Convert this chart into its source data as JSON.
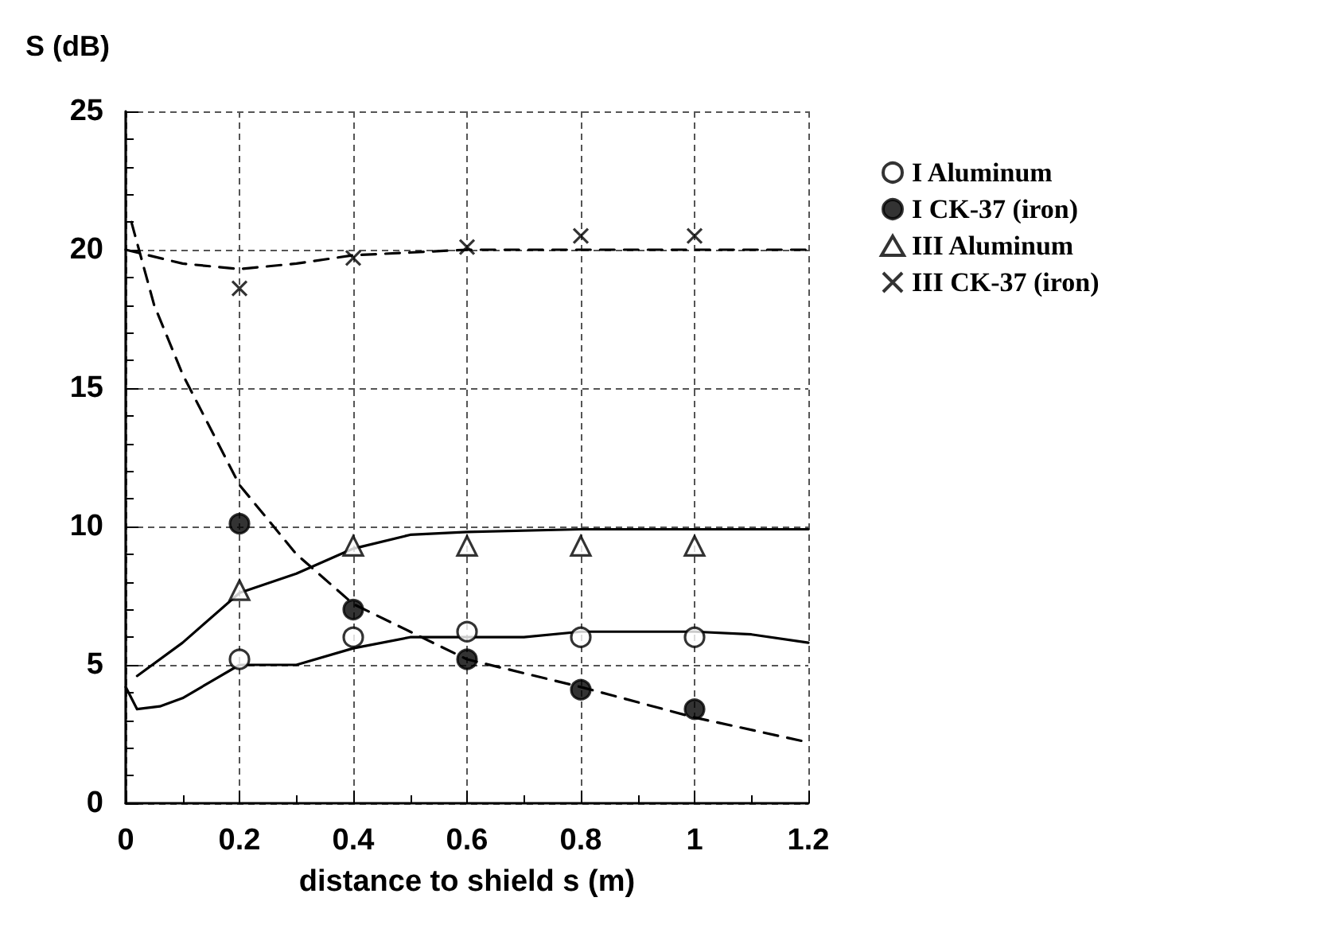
{
  "chart_data": {
    "type": "line",
    "xlabel": "distance to shield s (m)",
    "ylabel": "S (dB)",
    "xlim": [
      0,
      1.2
    ],
    "xticks": [
      0,
      0.2,
      0.4,
      0.6,
      0.8,
      1,
      1.2
    ],
    "ylim": [
      0,
      25
    ],
    "yticks": [
      0,
      5,
      10,
      15,
      20,
      25
    ],
    "grid": true,
    "legend": "right",
    "series": [
      {
        "color": "#000000",
        "line_style": "solid",
        "marker": "none",
        "x": [
          0,
          0.02,
          0.06,
          0.1,
          0.15,
          0.2,
          0.3,
          0.4,
          0.5,
          0.6,
          0.7,
          0.8,
          1.0,
          1.1,
          1.2
        ],
        "values": [
          4.2,
          3.4,
          3.5,
          3.8,
          4.4,
          5.0,
          5.0,
          5.6,
          6.0,
          6.0,
          6.0,
          6.2,
          6.2,
          6.1,
          5.8
        ]
      },
      {
        "color": "#000000",
        "line_style": "dashed",
        "marker": "none",
        "x": [
          0.01,
          0.05,
          0.1,
          0.2,
          0.3,
          0.4,
          0.5,
          0.6,
          0.8,
          1.0,
          1.2
        ],
        "values": [
          21,
          18,
          15.5,
          11.5,
          9,
          7.2,
          6.2,
          5.2,
          4.2,
          3.1,
          2.2
        ]
      },
      {
        "color": "#000000",
        "line_style": "solid",
        "marker": "none",
        "x": [
          0.02,
          0.1,
          0.2,
          0.3,
          0.4,
          0.5,
          0.6,
          0.8,
          1.0,
          1.2
        ],
        "values": [
          4.6,
          5.8,
          7.6,
          8.3,
          9.2,
          9.7,
          9.8,
          9.9,
          9.9,
          9.9
        ]
      },
      {
        "color": "#000000",
        "line_style": "dashed",
        "marker": "none",
        "x": [
          0,
          0.1,
          0.2,
          0.3,
          0.4,
          0.5,
          0.6,
          0.8,
          1.0,
          1.2
        ],
        "values": [
          20,
          19.5,
          19.3,
          19.5,
          19.8,
          19.9,
          20,
          20,
          20,
          20
        ]
      },
      {
        "type": "scatter",
        "name": "I Aluminum",
        "color": "#ffffff",
        "marker": "circle",
        "x": [
          0.2,
          0.4,
          0.6,
          0.8,
          1.0
        ],
        "values": [
          5.2,
          6.0,
          6.2,
          6.0,
          6.0
        ]
      },
      {
        "type": "scatter",
        "name": "I CK-37 (iron)",
        "color": "#000000",
        "marker": "circle",
        "x": [
          0.2,
          0.4,
          0.6,
          0.8,
          1.0
        ],
        "values": [
          10.1,
          7.0,
          5.2,
          4.1,
          3.4
        ]
      },
      {
        "type": "scatter",
        "name": "III Aluminum",
        "color": "#ffffff",
        "marker": "triangle",
        "x": [
          0.2,
          0.4,
          0.6,
          0.8,
          1.0
        ],
        "values": [
          7.7,
          9.3,
          9.3,
          9.3,
          9.3
        ]
      },
      {
        "type": "scatter",
        "name": "III CK-37 (iron)",
        "color": "#000000",
        "marker": "cross",
        "x": [
          0.2,
          0.4,
          0.6,
          0.8,
          1.0
        ],
        "values": [
          18.6,
          19.7,
          20.1,
          20.5,
          20.5
        ]
      }
    ]
  }
}
